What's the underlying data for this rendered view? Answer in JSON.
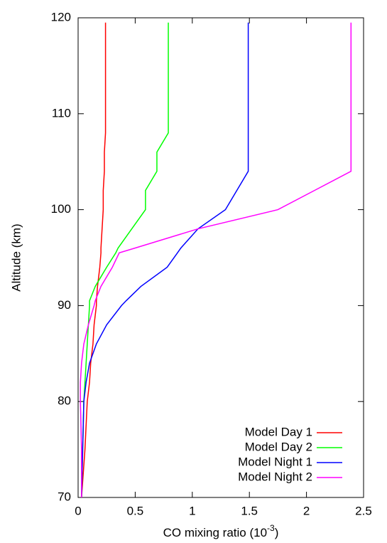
{
  "chart_data": {
    "type": "line",
    "xlabel": {
      "text": "CO mixing ratio (10",
      "exponent": "-3",
      "suffix": ")"
    },
    "ylabel": "Altitude (km)",
    "y": [
      70,
      75,
      80,
      82,
      84,
      86,
      88,
      90,
      90.5,
      92,
      94,
      95.5,
      96,
      98,
      100,
      102,
      104,
      106,
      108,
      119.5
    ],
    "series": [
      {
        "name": "Model Day 1",
        "color": "#ff0000",
        "values": [
          0.03,
          0.06,
          0.08,
          0.1,
          0.11,
          0.13,
          0.14,
          0.16,
          0.16,
          0.17,
          0.19,
          0.2,
          0.2,
          0.21,
          0.22,
          0.22,
          0.23,
          0.23,
          0.24,
          0.24
        ]
      },
      {
        "name": "Model Day 2",
        "color": "#00ff00",
        "values": [
          0.03,
          0.04,
          0.05,
          0.06,
          0.07,
          0.08,
          0.09,
          0.1,
          0.1,
          0.15,
          0.25,
          0.33,
          0.35,
          0.47,
          0.59,
          0.59,
          0.69,
          0.69,
          0.79,
          0.79
        ]
      },
      {
        "name": "Model Night 1",
        "color": "#0000ff",
        "values": [
          0.03,
          0.04,
          0.05,
          0.07,
          0.1,
          0.16,
          0.25,
          0.38,
          0.42,
          0.55,
          0.78,
          0.87,
          0.9,
          1.05,
          1.29,
          1.39,
          1.49,
          1.49,
          1.49,
          1.49
        ]
      },
      {
        "name": "Model Night 2",
        "color": "#ff00ff",
        "values": [
          0.03,
          0.03,
          0.02,
          0.02,
          0.03,
          0.05,
          0.09,
          0.14,
          0.15,
          0.2,
          0.3,
          0.36,
          0.5,
          1.05,
          1.75,
          2.07,
          2.39,
          2.39,
          2.39,
          2.39
        ]
      }
    ],
    "xlim": [
      0,
      2.5
    ],
    "xticks": [
      0,
      0.5,
      1,
      1.5,
      2,
      2.5
    ],
    "ylim": [
      70,
      120
    ],
    "yticks": [
      70,
      80,
      90,
      100,
      110,
      120
    ],
    "legend": "bottom-right"
  }
}
